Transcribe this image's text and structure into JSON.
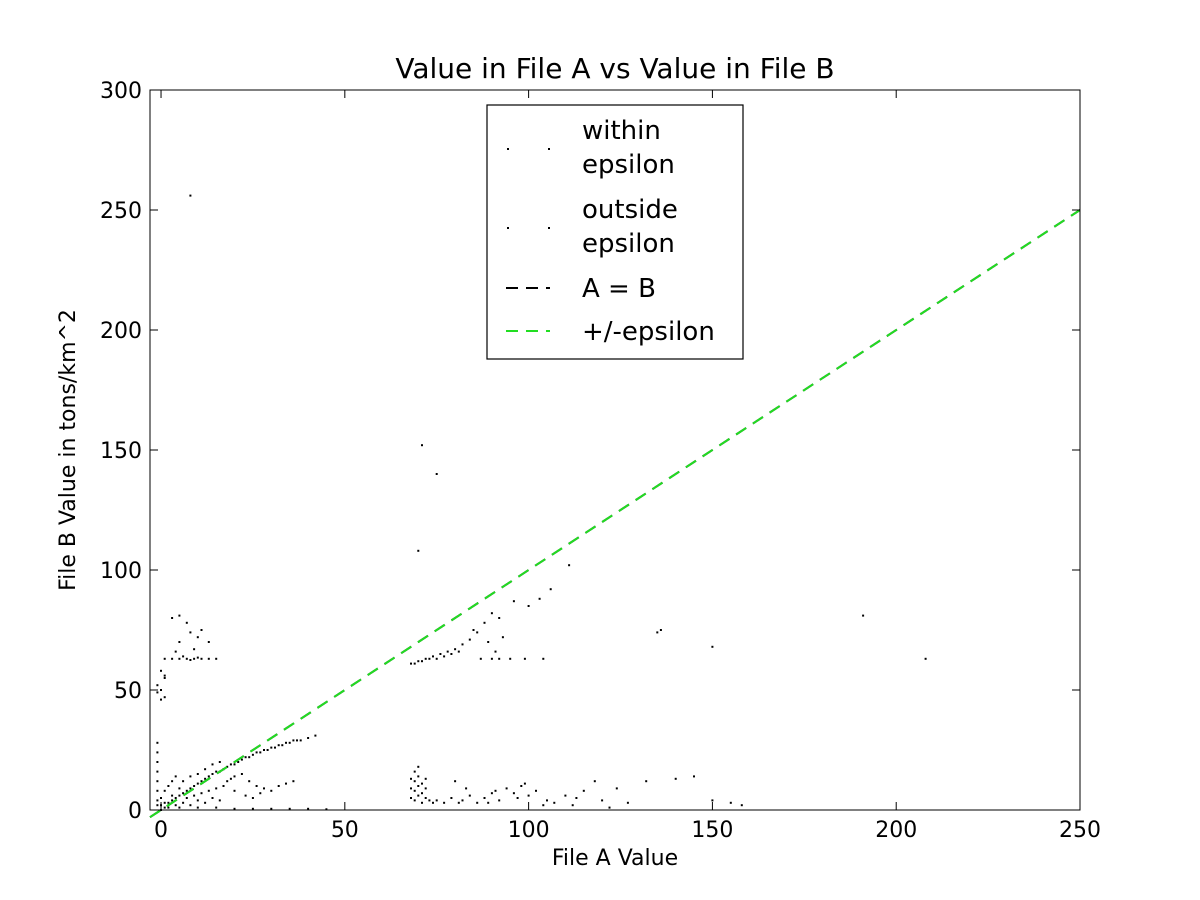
{
  "chart_data": {
    "type": "scatter",
    "title": "Value in File A vs Value in File B",
    "xlabel": "File A Value",
    "ylabel": "File B Value in tons/km^2",
    "xlim": [
      -3,
      250
    ],
    "ylim": [
      0,
      300
    ],
    "xticks": [
      0,
      50,
      100,
      150,
      200,
      250
    ],
    "xtick_labels": [
      "0",
      "50",
      "100",
      "150",
      "200",
      "250"
    ],
    "yticks": [
      0,
      50,
      100,
      150,
      200,
      250,
      300
    ],
    "ytick_labels": [
      "0",
      "50",
      "100",
      "150",
      "200",
      "250",
      "300"
    ],
    "grid": false,
    "legend_position": "upper-center",
    "legend": [
      {
        "label_lines": [
          "within",
          "epsilon"
        ],
        "kind": "points",
        "color": "#000000"
      },
      {
        "label_lines": [
          "outside",
          "epsilon"
        ],
        "kind": "points",
        "color": "#000000"
      },
      {
        "label_lines": [
          "A = B"
        ],
        "kind": "dashed-line",
        "color": "#000000"
      },
      {
        "label_lines": [
          "+/-epsilon"
        ],
        "kind": "dashed-line",
        "color": "#22dd22"
      }
    ],
    "series": [
      {
        "kind": "points",
        "points": [
          [
            8,
            256
          ],
          [
            71,
            152
          ],
          [
            70,
            108
          ],
          [
            75,
            140
          ],
          [
            111,
            102
          ],
          [
            96,
            87
          ],
          [
            100,
            85
          ],
          [
            103,
            88
          ],
          [
            106,
            92
          ],
          [
            135,
            74
          ],
          [
            136,
            75
          ],
          [
            150,
            68
          ],
          [
            191,
            81
          ],
          [
            208,
            63
          ],
          [
            104,
            63
          ],
          [
            99,
            63
          ],
          [
            95,
            63
          ],
          [
            3,
            80
          ],
          [
            5,
            81
          ],
          [
            7,
            78
          ],
          [
            8,
            74
          ],
          [
            10,
            72
          ],
          [
            11,
            75
          ],
          [
            13,
            70
          ],
          [
            5,
            70
          ],
          [
            9,
            67
          ],
          [
            4,
            66
          ],
          [
            6,
            64
          ],
          [
            0,
            58
          ],
          [
            1,
            55
          ],
          [
            -1,
            52
          ],
          [
            0,
            50
          ],
          [
            1,
            47
          ],
          [
            0,
            46
          ],
          [
            -1,
            49
          ],
          [
            1,
            56
          ],
          [
            1,
            63
          ],
          [
            3,
            63
          ],
          [
            5,
            63
          ],
          [
            7,
            63
          ],
          [
            9,
            63
          ],
          [
            11,
            63
          ],
          [
            13,
            63
          ],
          [
            15,
            63
          ],
          [
            8,
            62.5
          ],
          [
            10,
            63.5
          ],
          [
            68,
            61
          ],
          [
            70,
            62
          ],
          [
            72,
            63
          ],
          [
            74,
            64
          ],
          [
            76,
            65
          ],
          [
            78,
            66
          ],
          [
            80,
            67
          ],
          [
            82,
            69
          ],
          [
            84,
            71
          ],
          [
            86,
            74
          ],
          [
            88,
            78
          ],
          [
            90,
            82
          ],
          [
            92,
            80
          ],
          [
            89,
            70
          ],
          [
            91,
            66
          ],
          [
            93,
            72
          ],
          [
            87,
            63
          ],
          [
            90,
            63
          ],
          [
            92,
            63
          ],
          [
            85,
            75
          ],
          [
            69,
            61
          ],
          [
            71,
            62
          ],
          [
            73,
            63
          ],
          [
            75,
            63
          ],
          [
            77,
            64
          ],
          [
            79,
            65
          ],
          [
            81,
            66
          ],
          [
            2,
            3
          ],
          [
            3,
            4
          ],
          [
            4,
            5
          ],
          [
            5,
            6
          ],
          [
            6,
            7
          ],
          [
            7,
            8
          ],
          [
            8,
            9
          ],
          [
            9,
            10
          ],
          [
            10,
            11
          ],
          [
            11,
            12
          ],
          [
            12,
            13
          ],
          [
            13,
            14
          ],
          [
            14,
            15
          ],
          [
            15,
            16
          ],
          [
            16,
            16
          ],
          [
            17,
            17
          ],
          [
            18,
            18
          ],
          [
            19,
            19
          ],
          [
            20,
            19
          ],
          [
            21,
            20
          ],
          [
            22,
            21
          ],
          [
            23,
            22
          ],
          [
            24,
            22
          ],
          [
            25,
            23
          ],
          [
            26,
            24
          ],
          [
            27,
            24
          ],
          [
            28,
            25
          ],
          [
            29,
            25
          ],
          [
            30,
            26
          ],
          [
            31,
            26
          ],
          [
            32,
            27
          ],
          [
            33,
            27
          ],
          [
            34,
            28
          ],
          [
            35,
            28
          ],
          [
            36,
            29
          ],
          [
            37,
            29
          ],
          [
            38,
            29
          ],
          [
            40,
            30
          ],
          [
            42,
            31
          ],
          [
            3,
            6
          ],
          [
            5,
            9
          ],
          [
            6,
            12
          ],
          [
            7,
            5
          ],
          [
            8,
            14
          ],
          [
            9,
            6
          ],
          [
            10,
            15
          ],
          [
            11,
            7
          ],
          [
            12,
            17
          ],
          [
            13,
            8
          ],
          [
            14,
            19
          ],
          [
            15,
            9
          ],
          [
            16,
            20
          ],
          [
            17,
            10
          ],
          [
            18,
            12
          ],
          [
            19,
            13
          ],
          [
            20,
            14
          ],
          [
            22,
            15
          ],
          [
            24,
            12
          ],
          [
            26,
            10
          ],
          [
            28,
            9
          ],
          [
            30,
            8
          ],
          [
            32,
            10
          ],
          [
            34,
            11
          ],
          [
            36,
            12
          ],
          [
            4,
            2
          ],
          [
            6,
            3
          ],
          [
            8,
            2
          ],
          [
            10,
            4
          ],
          [
            12,
            3
          ],
          [
            14,
            5
          ],
          [
            16,
            4
          ],
          [
            20,
            8
          ],
          [
            23,
            6
          ],
          [
            25,
            5
          ],
          [
            27,
            7
          ],
          [
            2,
            10
          ],
          [
            3,
            12
          ],
          [
            4,
            14
          ],
          [
            1,
            8
          ],
          [
            0,
            5
          ],
          [
            1,
            3
          ],
          [
            0,
            2
          ],
          [
            2,
            1
          ],
          [
            1,
            1
          ],
          [
            0,
            0
          ],
          [
            5,
            1
          ],
          [
            10,
            1
          ],
          [
            15,
            1
          ],
          [
            20,
            0.5
          ],
          [
            25,
            0.5
          ],
          [
            30,
            0.5
          ],
          [
            35,
            0.5
          ],
          [
            40,
            0.5
          ],
          [
            45,
            0.3
          ],
          [
            -1,
            28
          ],
          [
            -1,
            24
          ],
          [
            -1,
            20
          ],
          [
            -1,
            16
          ],
          [
            -1,
            12
          ],
          [
            -1,
            8
          ],
          [
            -1,
            4
          ],
          [
            -1,
            2
          ],
          [
            68,
            5
          ],
          [
            68,
            9
          ],
          [
            68,
            13
          ],
          [
            69,
            4
          ],
          [
            69,
            8
          ],
          [
            69,
            12
          ],
          [
            69,
            16
          ],
          [
            70,
            6
          ],
          [
            70,
            10
          ],
          [
            70,
            14
          ],
          [
            70,
            18
          ],
          [
            71,
            3
          ],
          [
            71,
            7
          ],
          [
            71,
            11
          ],
          [
            72,
            5
          ],
          [
            72,
            9
          ],
          [
            72,
            13
          ],
          [
            73,
            4
          ],
          [
            74,
            3
          ],
          [
            75,
            4
          ],
          [
            77,
            3
          ],
          [
            79,
            5
          ],
          [
            81,
            3
          ],
          [
            82,
            4
          ],
          [
            84,
            6
          ],
          [
            86,
            3
          ],
          [
            88,
            5
          ],
          [
            89,
            3
          ],
          [
            90,
            7
          ],
          [
            92,
            4
          ],
          [
            94,
            9
          ],
          [
            96,
            7
          ],
          [
            97,
            5
          ],
          [
            98,
            10
          ],
          [
            100,
            6
          ],
          [
            102,
            8
          ],
          [
            105,
            4
          ],
          [
            107,
            3
          ],
          [
            110,
            6
          ],
          [
            113,
            5
          ],
          [
            115,
            8
          ],
          [
            118,
            12
          ],
          [
            120,
            4
          ],
          [
            124,
            9
          ],
          [
            127,
            3
          ],
          [
            132,
            12
          ],
          [
            140,
            13
          ],
          [
            145,
            14
          ],
          [
            150,
            4
          ],
          [
            155,
            3
          ],
          [
            158,
            2
          ],
          [
            80,
            12
          ],
          [
            83,
            9
          ],
          [
            91,
            8
          ],
          [
            99,
            11
          ],
          [
            104,
            2
          ],
          [
            112,
            2
          ],
          [
            122,
            1
          ]
        ]
      },
      {
        "kind": "dashed-line",
        "color": "#000000",
        "x": [
          -3,
          250
        ],
        "y": [
          -3,
          250
        ]
      },
      {
        "kind": "dashed-line",
        "color": "#22dd22",
        "x": [
          -3,
          250
        ],
        "y": [
          -3,
          250
        ]
      }
    ]
  }
}
